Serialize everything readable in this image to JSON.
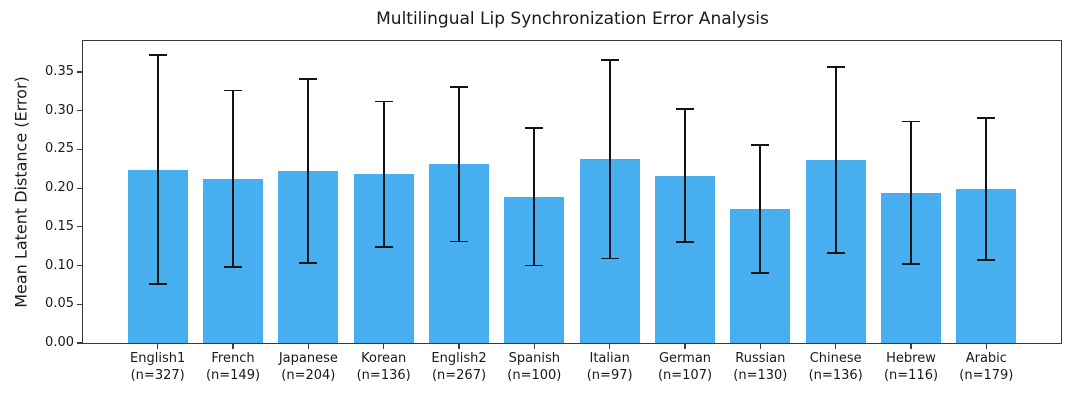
{
  "chart_data": {
    "type": "bar",
    "title": "Multilingual Lip Synchronization Error Analysis",
    "xlabel": "",
    "ylabel": "Mean Latent Distance (Error)",
    "ylim": [
      0,
      0.39
    ],
    "yticks": [
      0.0,
      0.05,
      0.1,
      0.15,
      0.2,
      0.25,
      0.3,
      0.35
    ],
    "grid": false,
    "legend": "none",
    "bar_color": "#47AEF0",
    "errorbar_color": "#141414",
    "categories": [
      "English1",
      "French",
      "Japanese",
      "Korean",
      "English2",
      "Spanish",
      "Italian",
      "German",
      "Russian",
      "Chinese",
      "Hebrew",
      "Arabic"
    ],
    "sample_sizes": [
      327,
      149,
      204,
      136,
      267,
      100,
      97,
      107,
      130,
      136,
      116,
      179
    ],
    "n_labels": [
      "(n=327)",
      "(n=149)",
      "(n=204)",
      "(n=136)",
      "(n=267)",
      "(n=100)",
      "(n=97)",
      "(n=107)",
      "(n=130)",
      "(n=136)",
      "(n=116)",
      "(n=179)"
    ],
    "values": [
      0.224,
      0.212,
      0.222,
      0.218,
      0.231,
      0.189,
      0.237,
      0.216,
      0.173,
      0.236,
      0.194,
      0.199
    ],
    "errors": [
      0.148,
      0.114,
      0.119,
      0.094,
      0.1,
      0.089,
      0.128,
      0.086,
      0.083,
      0.12,
      0.092,
      0.092
    ]
  }
}
